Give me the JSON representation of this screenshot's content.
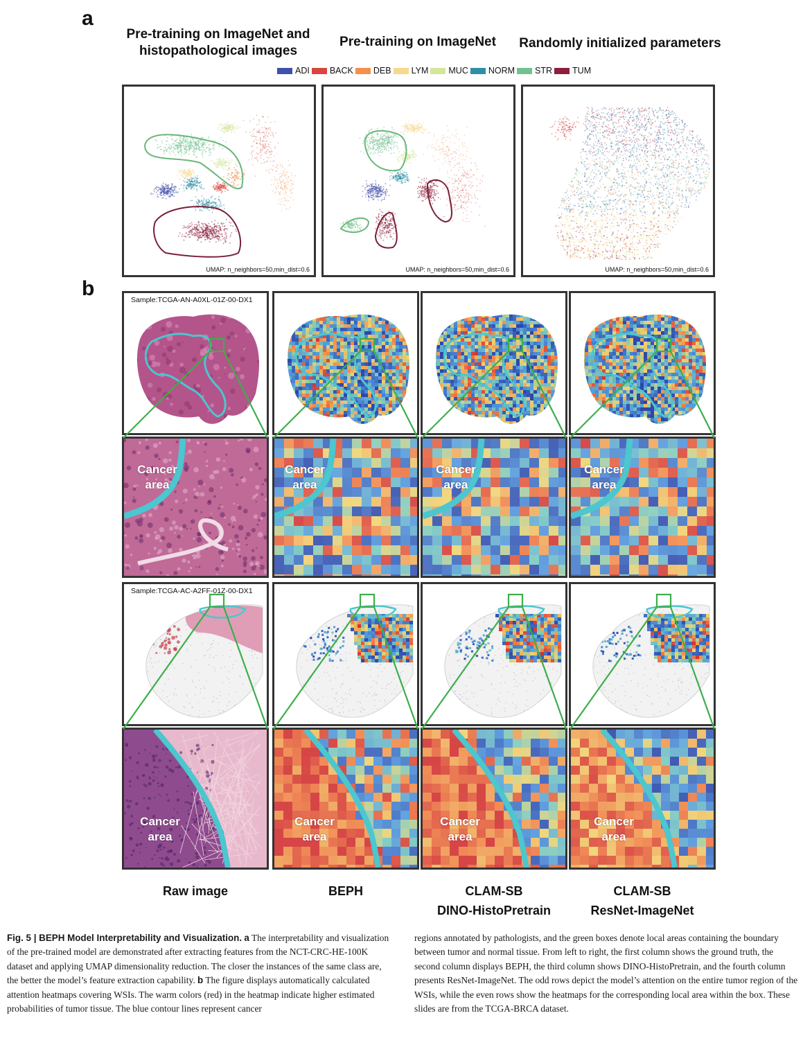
{
  "panel_a": {
    "letter": "a",
    "titles": [
      "Pre-training on ImageNet and histopathological images",
      "Pre-training on ImageNet",
      "Randomly initialized parameters"
    ],
    "title_line1": "Pre-training on ImageNet and",
    "title_line2": "histopathological images",
    "legend": [
      {
        "label": "ADI",
        "color": "#3f51a8"
      },
      {
        "label": "BACK",
        "color": "#d9453f"
      },
      {
        "label": "DEB",
        "color": "#f4904a"
      },
      {
        "label": "LYM",
        "color": "#f6d98c"
      },
      {
        "label": "MUC",
        "color": "#d4e69a"
      },
      {
        "label": "NORM",
        "color": "#2e8fa6"
      },
      {
        "label": "STR",
        "color": "#73c18f"
      },
      {
        "label": "TUM",
        "color": "#8c1f3d"
      }
    ],
    "umap_caption": "UMAP: n_neighbors=50,min_dist=0.6"
  },
  "panel_b": {
    "letter": "b",
    "sample1": "Sample:TCGA-AN-A0XL-01Z-00-DX1",
    "sample2": "Sample:TCGA-AC-A2FF-01Z-00-DX1",
    "cancer_line1": "Cancer",
    "cancer_line2": "area",
    "column_labels": [
      {
        "line1": "Raw image",
        "line2": ""
      },
      {
        "line1": "BEPH",
        "line2": ""
      },
      {
        "line1": "CLAM-SB",
        "line2": "DINO-HistoPretrain"
      },
      {
        "line1": "CLAM-SB",
        "line2": "ResNet-ImageNet"
      }
    ]
  },
  "caption": {
    "bold_title": "Fig. 5 | BEPH Model Interpretability and Visualization.",
    "a_marker": "a",
    "a_text": "The interpretability and visualization of the pre-trained model are demonstrated after extracting features from the NCT-CRC-HE-100K dataset and applying UMAP dimensionality reduction. The closer the instances of the same class are, the better the model’s feature extraction capability.",
    "b_marker": "b",
    "b_text": "The figure displays automatically calculated attention heatmaps covering WSIs. The warm colors (red) in the heatmap indicate higher estimated probabilities of tumor tissue. The blue contour lines represent cancer regions annotated by pathologists, and the green boxes denote local areas containing the boundary between tumor and normal tissue. From left to right, the first column shows the ground truth, the second column displays BEPH, the third column shows DINO-HistoPretrain, and the fourth column presents ResNet-ImageNet. The odd rows depict the model’s attention on the entire tumor region of the WSIs, while the even rows show the heatmaps for the corresponding local area within the box. These slides are from the TCGA-BRCA dataset."
  }
}
